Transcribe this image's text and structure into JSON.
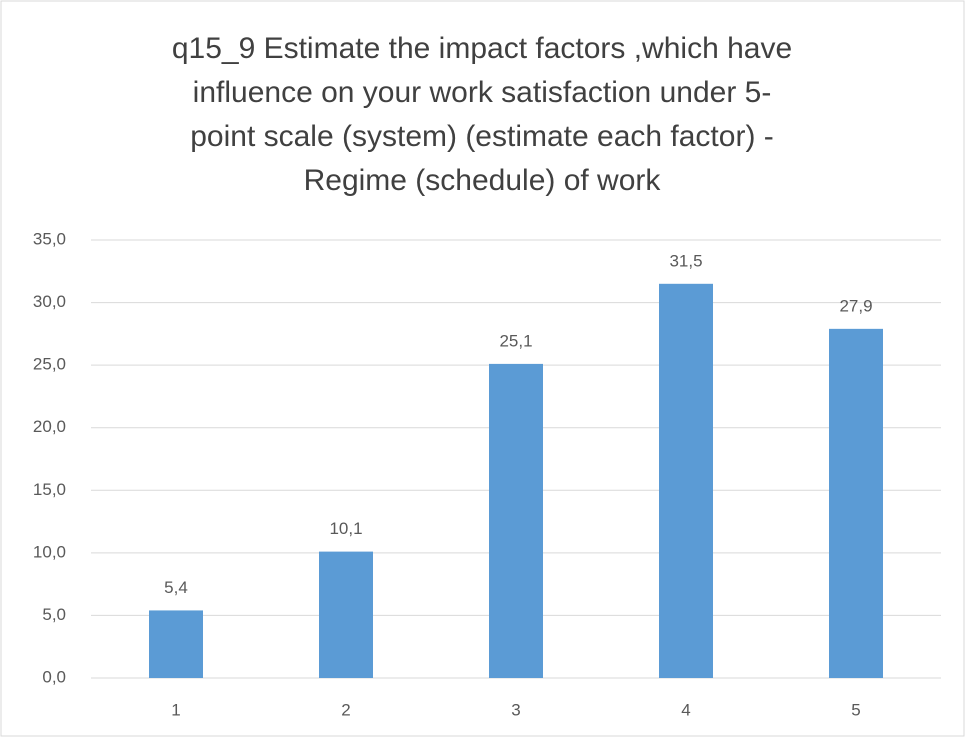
{
  "chart_data": {
    "type": "bar",
    "title": [
      "q15_9 Estimate the  impact factors ,which have",
      "influence on your work  satisfaction under 5-",
      "point scale (system) (estimate each factor) -",
      "Regime (schedule) of work"
    ],
    "categories": [
      "1",
      "2",
      "3",
      "4",
      "5"
    ],
    "values": [
      5.4,
      10.1,
      25.1,
      31.5,
      27.9
    ],
    "value_labels": [
      "5,4",
      "10,1",
      "25,1",
      "31,5",
      "27,9"
    ],
    "color": "#5b9bd5",
    "ylim": [
      0,
      35
    ],
    "yticks": [
      {
        "value": 0,
        "label": "0,0"
      },
      {
        "value": 5,
        "label": "5,0"
      },
      {
        "value": 10,
        "label": "10,0"
      },
      {
        "value": 15,
        "label": "15,0"
      },
      {
        "value": 20,
        "label": "20,0"
      },
      {
        "value": 25,
        "label": "25,0"
      },
      {
        "value": 30,
        "label": "30,0"
      },
      {
        "value": 35,
        "label": "35,0"
      }
    ],
    "grid": true
  }
}
